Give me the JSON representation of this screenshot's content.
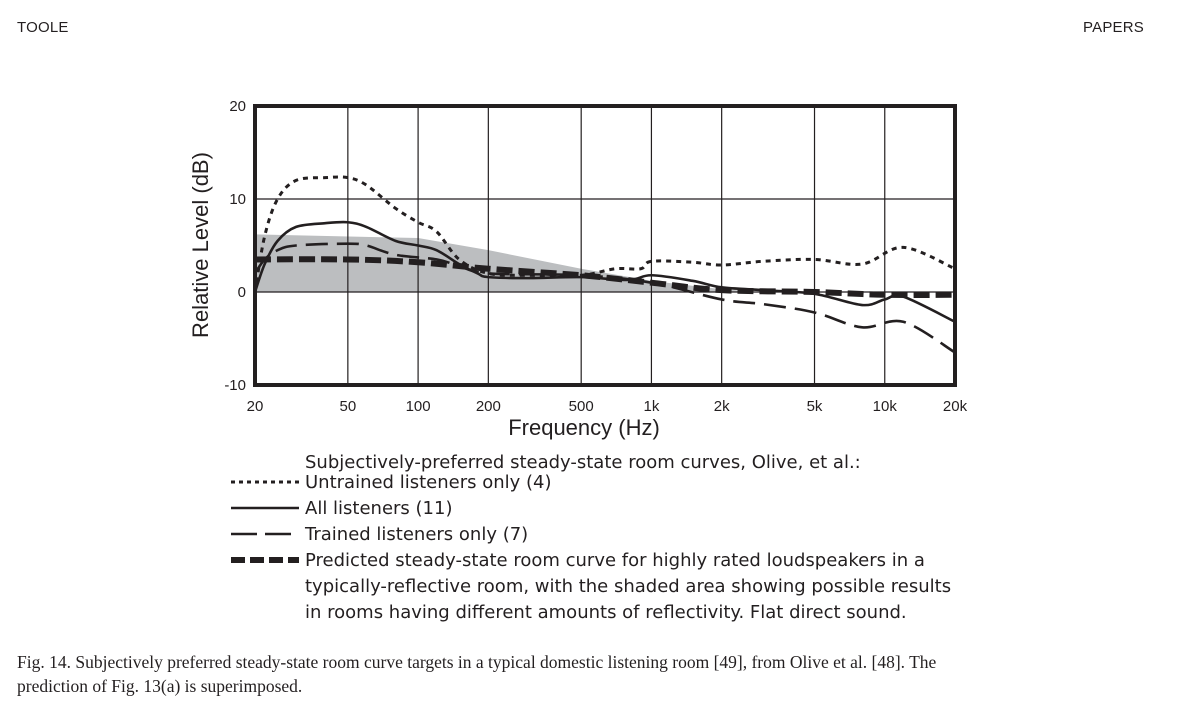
{
  "page": {
    "running_head_left": "TOOLE",
    "running_head_right": "PAPERS",
    "caption_line1": "Fig. 14.  Subjectively preferred steady-state room curve targets in a typical domestic listening room [49], from Olive et al. [48]. The",
    "caption_line2": "prediction of Fig. 13(a) is superimposed."
  },
  "chart_data": {
    "type": "line",
    "title": "",
    "xlabel": "Frequency (Hz)",
    "ylabel": "Relative Level (dB)",
    "xscale": "log",
    "xlim": [
      20,
      20000
    ],
    "ylim": [
      -10,
      20
    ],
    "grid": true,
    "x_ticks": [
      20,
      50,
      100,
      200,
      500,
      1000,
      2000,
      5000,
      10000,
      20000
    ],
    "x_tick_labels": [
      "20",
      "50",
      "100",
      "200",
      "500",
      "1k",
      "2k",
      "5k",
      "10k",
      "20k"
    ],
    "y_ticks": [
      -10,
      0,
      10,
      20
    ],
    "y_tick_labels": [
      "-10",
      "0",
      "10",
      "20"
    ],
    "legend_title": "Subjectively-preferred steady-state room curves, Olive, et al.:",
    "legend_position": "below",
    "shaded_band": {
      "name": "Possible results in rooms with different reflectivity",
      "color": "#bcbec0",
      "x": [
        20,
        100,
        200,
        500,
        1000,
        2000,
        3000
      ],
      "upper": [
        6.2,
        5.8,
        4.5,
        2.5,
        1.2,
        0.3,
        0
      ],
      "lower": [
        0,
        0,
        0,
        0,
        0,
        0,
        0
      ]
    },
    "series": [
      {
        "name": "Untrained listeners only (4)",
        "style": "dotted",
        "x": [
          20,
          22,
          25,
          30,
          40,
          50,
          60,
          80,
          100,
          120,
          150,
          200,
          300,
          500,
          700,
          900,
          1000,
          1500,
          2000,
          3000,
          5000,
          8000,
          12000,
          20000
        ],
        "values": [
          0,
          6,
          10,
          12,
          12.3,
          12.3,
          11.5,
          9,
          7.5,
          6.5,
          3.5,
          2,
          1.8,
          1.8,
          2.5,
          2.5,
          3.3,
          3.2,
          2.9,
          3.3,
          3.5,
          3.0,
          4.8,
          2.5
        ]
      },
      {
        "name": "All listeners (11)",
        "style": "solid",
        "x": [
          20,
          22,
          25,
          30,
          40,
          50,
          60,
          80,
          100,
          120,
          150,
          180,
          200,
          300,
          500,
          800,
          1000,
          1500,
          2000,
          3000,
          5000,
          8000,
          10000,
          12000,
          20000
        ],
        "values": [
          0,
          3,
          5.5,
          7,
          7.4,
          7.5,
          7,
          5.5,
          5,
          4.5,
          3,
          2,
          1.6,
          1.5,
          1.6,
          1.3,
          1.8,
          1.2,
          0.5,
          0.2,
          -0.2,
          -1.4,
          -0.8,
          -0.5,
          -3.2
        ]
      },
      {
        "name": "Trained listeners only (7)",
        "style": "long-dash",
        "x": [
          20,
          22,
          25,
          30,
          50,
          60,
          80,
          120,
          150,
          200,
          500,
          1000,
          2000,
          3000,
          5000,
          8000,
          12000,
          20000
        ],
        "values": [
          2,
          3.5,
          4.5,
          5,
          5.2,
          5,
          4,
          3.5,
          2.8,
          2,
          1.8,
          1,
          -0.8,
          -1.3,
          -2.2,
          -3.8,
          -3.2,
          -6.5
        ]
      },
      {
        "name": "Predicted steady-state room curve for highly rated loudspeakers in a typically-reflective room, with the shaded area showing possible results in rooms having different amounts of reflectivity.  Flat direct sound.",
        "style": "heavy-dash",
        "x": [
          20,
          50,
          100,
          200,
          500,
          1000,
          2000,
          5000,
          10000,
          20000
        ],
        "values": [
          3.5,
          3.5,
          3.2,
          2.5,
          1.8,
          1.0,
          0.2,
          0,
          -0.3,
          -0.3
        ]
      }
    ],
    "legend_entries": [
      "Untrained listeners only (4)",
      "All listeners (11)",
      "Trained listeners only (7)",
      "Predicted steady-state room curve for highly rated loudspeakers in a",
      "typically-reflective room, with the shaded area showing possible results",
      "in rooms having different amounts of reflectivity.  Flat direct sound."
    ]
  }
}
